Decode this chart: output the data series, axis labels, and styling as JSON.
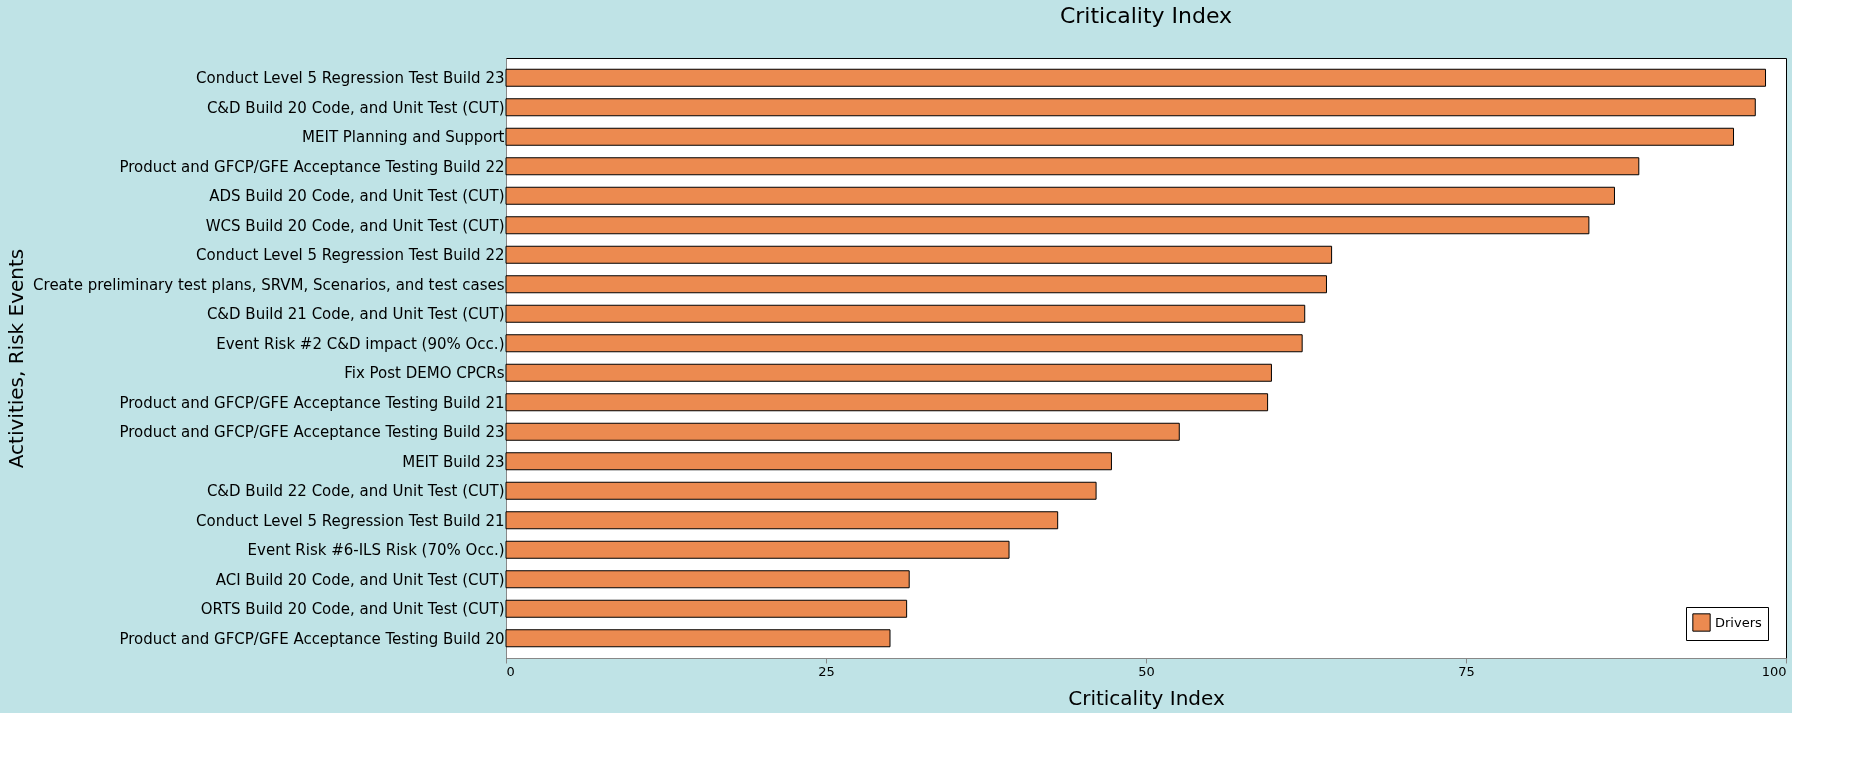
{
  "chart_data": {
    "type": "bar",
    "orientation": "horizontal",
    "title": "Criticality Index",
    "xlabel": "Criticality Index",
    "ylabel": "Activities, Risk Events",
    "categories": [
      "Conduct Level 5 Regression Test Build 23",
      "C&D Build 20 Code, and Unit Test (CUT)",
      "MEIT Planning and Support",
      "Product and GFCP/GFE Acceptance Testing Build 22",
      "ADS Build 20 Code, and Unit Test (CUT)",
      "WCS Build 20 Code, and Unit Test (CUT)",
      "Conduct Level 5 Regression Test Build 22",
      "Create preliminary test plans, SRVM, Scenarios, and test cases",
      "C&D Build 21 Code, and Unit Test (CUT)",
      "Event Risk #2 C&D impact (90% Occ.)",
      "Fix Post DEMO CPCRs",
      "Product and GFCP/GFE Acceptance Testing Build 21",
      "Product and GFCP/GFE Acceptance Testing Build 23",
      "MEIT Build 23",
      "C&D Build 22 Code, and Unit Test (CUT)",
      "Conduct Level 5 Regression Test Build 21",
      "Event Risk #6-ILS Risk (70% Occ.)",
      "ACI Build 20 Code, and Unit Test (CUT)",
      "ORTS Build 20 Code, and Unit Test (CUT)",
      "Product and GFCP/GFE Acceptance Testing Build 20"
    ],
    "series": [
      {
        "name": "Drivers",
        "color": "#ec8a50",
        "values": [
          98.4,
          97.6,
          95.9,
          88.5,
          86.6,
          84.6,
          64.5,
          64.1,
          62.4,
          62.2,
          59.8,
          59.5,
          52.6,
          47.3,
          46.1,
          43.1,
          39.3,
          31.5,
          31.3,
          30.0
        ]
      }
    ],
    "xlim": [
      0,
      100
    ],
    "xticks": [
      0,
      25,
      50,
      75,
      100
    ],
    "grid": false,
    "legend": "bottom right"
  }
}
